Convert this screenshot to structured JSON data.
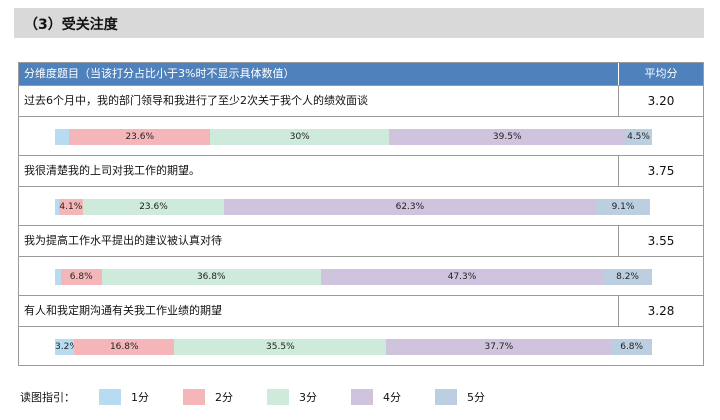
{
  "section": {
    "title": "（3）受关注度"
  },
  "table": {
    "header_question": "分维度题目（当该打分占比小于3%时不显示具体数值）",
    "header_avg": "平均分"
  },
  "colors": {
    "1": "#b7dcf2",
    "2": "#f5b6b9",
    "3": "#cdeadb",
    "4": "#cfc3dd",
    "5": "#bccfe0"
  },
  "chart_data": {
    "type": "bar",
    "orientation": "horizontal-stacked-100%",
    "categories": [
      "过去6个月中，我的部门领导和我进行了至少2次关于我个人的绩效面谈",
      "我很清楚我的上司对我工作的期望。",
      "我为提高工作水平提出的建议被认真对待",
      "有人和我定期沟通有关我工作业绩的期望"
    ],
    "averages": [
      "3.20",
      "3.75",
      "3.55",
      "3.28"
    ],
    "series": [
      {
        "name": "1分",
        "values": [
          2.4,
          0.6,
          1.0,
          3.2
        ],
        "labels": [
          "",
          "",
          "",
          "3.2%"
        ]
      },
      {
        "name": "2分",
        "values": [
          23.6,
          4.1,
          6.8,
          16.8
        ],
        "labels": [
          "23.6%",
          "4.1%",
          "6.8%",
          "16.8%"
        ]
      },
      {
        "name": "3分",
        "values": [
          30,
          23.6,
          36.8,
          35.5
        ],
        "labels": [
          "30%",
          "23.6%",
          "36.8%",
          "35.5%"
        ]
      },
      {
        "name": "4分",
        "values": [
          39.5,
          62.3,
          47.3,
          37.7
        ],
        "labels": [
          "39.5%",
          "62.3%",
          "47.3%",
          "37.7%"
        ]
      },
      {
        "name": "5分",
        "values": [
          4.5,
          9.1,
          8.2,
          6.8
        ],
        "labels": [
          "4.5%",
          "9.1%",
          "8.2%",
          "6.8%"
        ]
      }
    ],
    "xlim": [
      0,
      100
    ]
  },
  "legend": {
    "title": "读图指引：",
    "items": [
      "1分",
      "2分",
      "3分",
      "4分",
      "5分"
    ]
  }
}
